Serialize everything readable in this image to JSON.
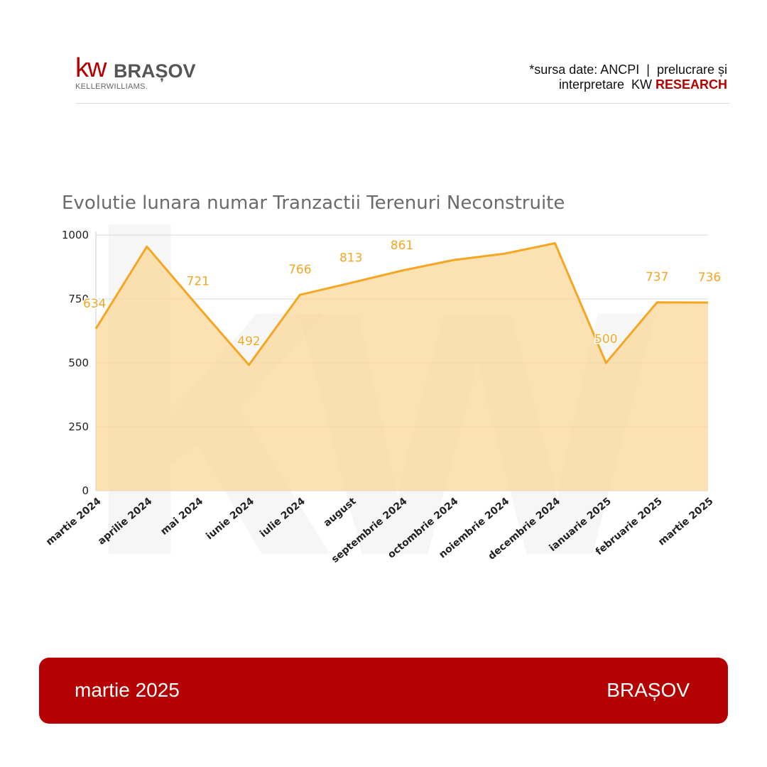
{
  "header": {
    "logo": {
      "mark": "kw",
      "city": "BRAȘOV",
      "brand_line": "KELLERWILLIAMS."
    },
    "source_line1": "*sursa date: ANCPI  |  prelucrare și",
    "source_line2_prefix": "interpretare  KW ",
    "source_line2_highlight": "RESEARCH"
  },
  "colors": {
    "brand_red": "#b40101",
    "series_line": "#f5a623",
    "series_fill": "#fbd79a",
    "label": "#f5a623",
    "grid": "#d9d9d9"
  },
  "chart_data": {
    "type": "area",
    "title": "Evolutie lunara numar Tranzactii Terenuri Neconstruite",
    "categories": [
      "martie 2024",
      "aprilie 2024",
      "mai 2024",
      "iunie 2024",
      "iulie 2024",
      "august",
      "septembrie 2024",
      "octombrie 2024",
      "noiembrie 2024",
      "decembrie 2024",
      "ianuarie 2025",
      "februarie 2025",
      "martie 2025"
    ],
    "values": [
      634,
      955,
      721,
      492,
      766,
      813,
      861,
      902,
      927,
      968,
      500,
      737,
      736
    ],
    "data_labels": [
      "634",
      "",
      "721",
      "492",
      "766",
      "813",
      "861",
      "",
      "",
      "",
      "500",
      "737",
      "736"
    ],
    "y_ticks": [
      "0",
      "250",
      "500",
      "750",
      "1000"
    ],
    "ylim": [
      0,
      1000
    ],
    "grid": true,
    "legend": "none",
    "watermark": "kw"
  },
  "footer": {
    "date": "martie 2025",
    "city": "BRAȘOV"
  }
}
